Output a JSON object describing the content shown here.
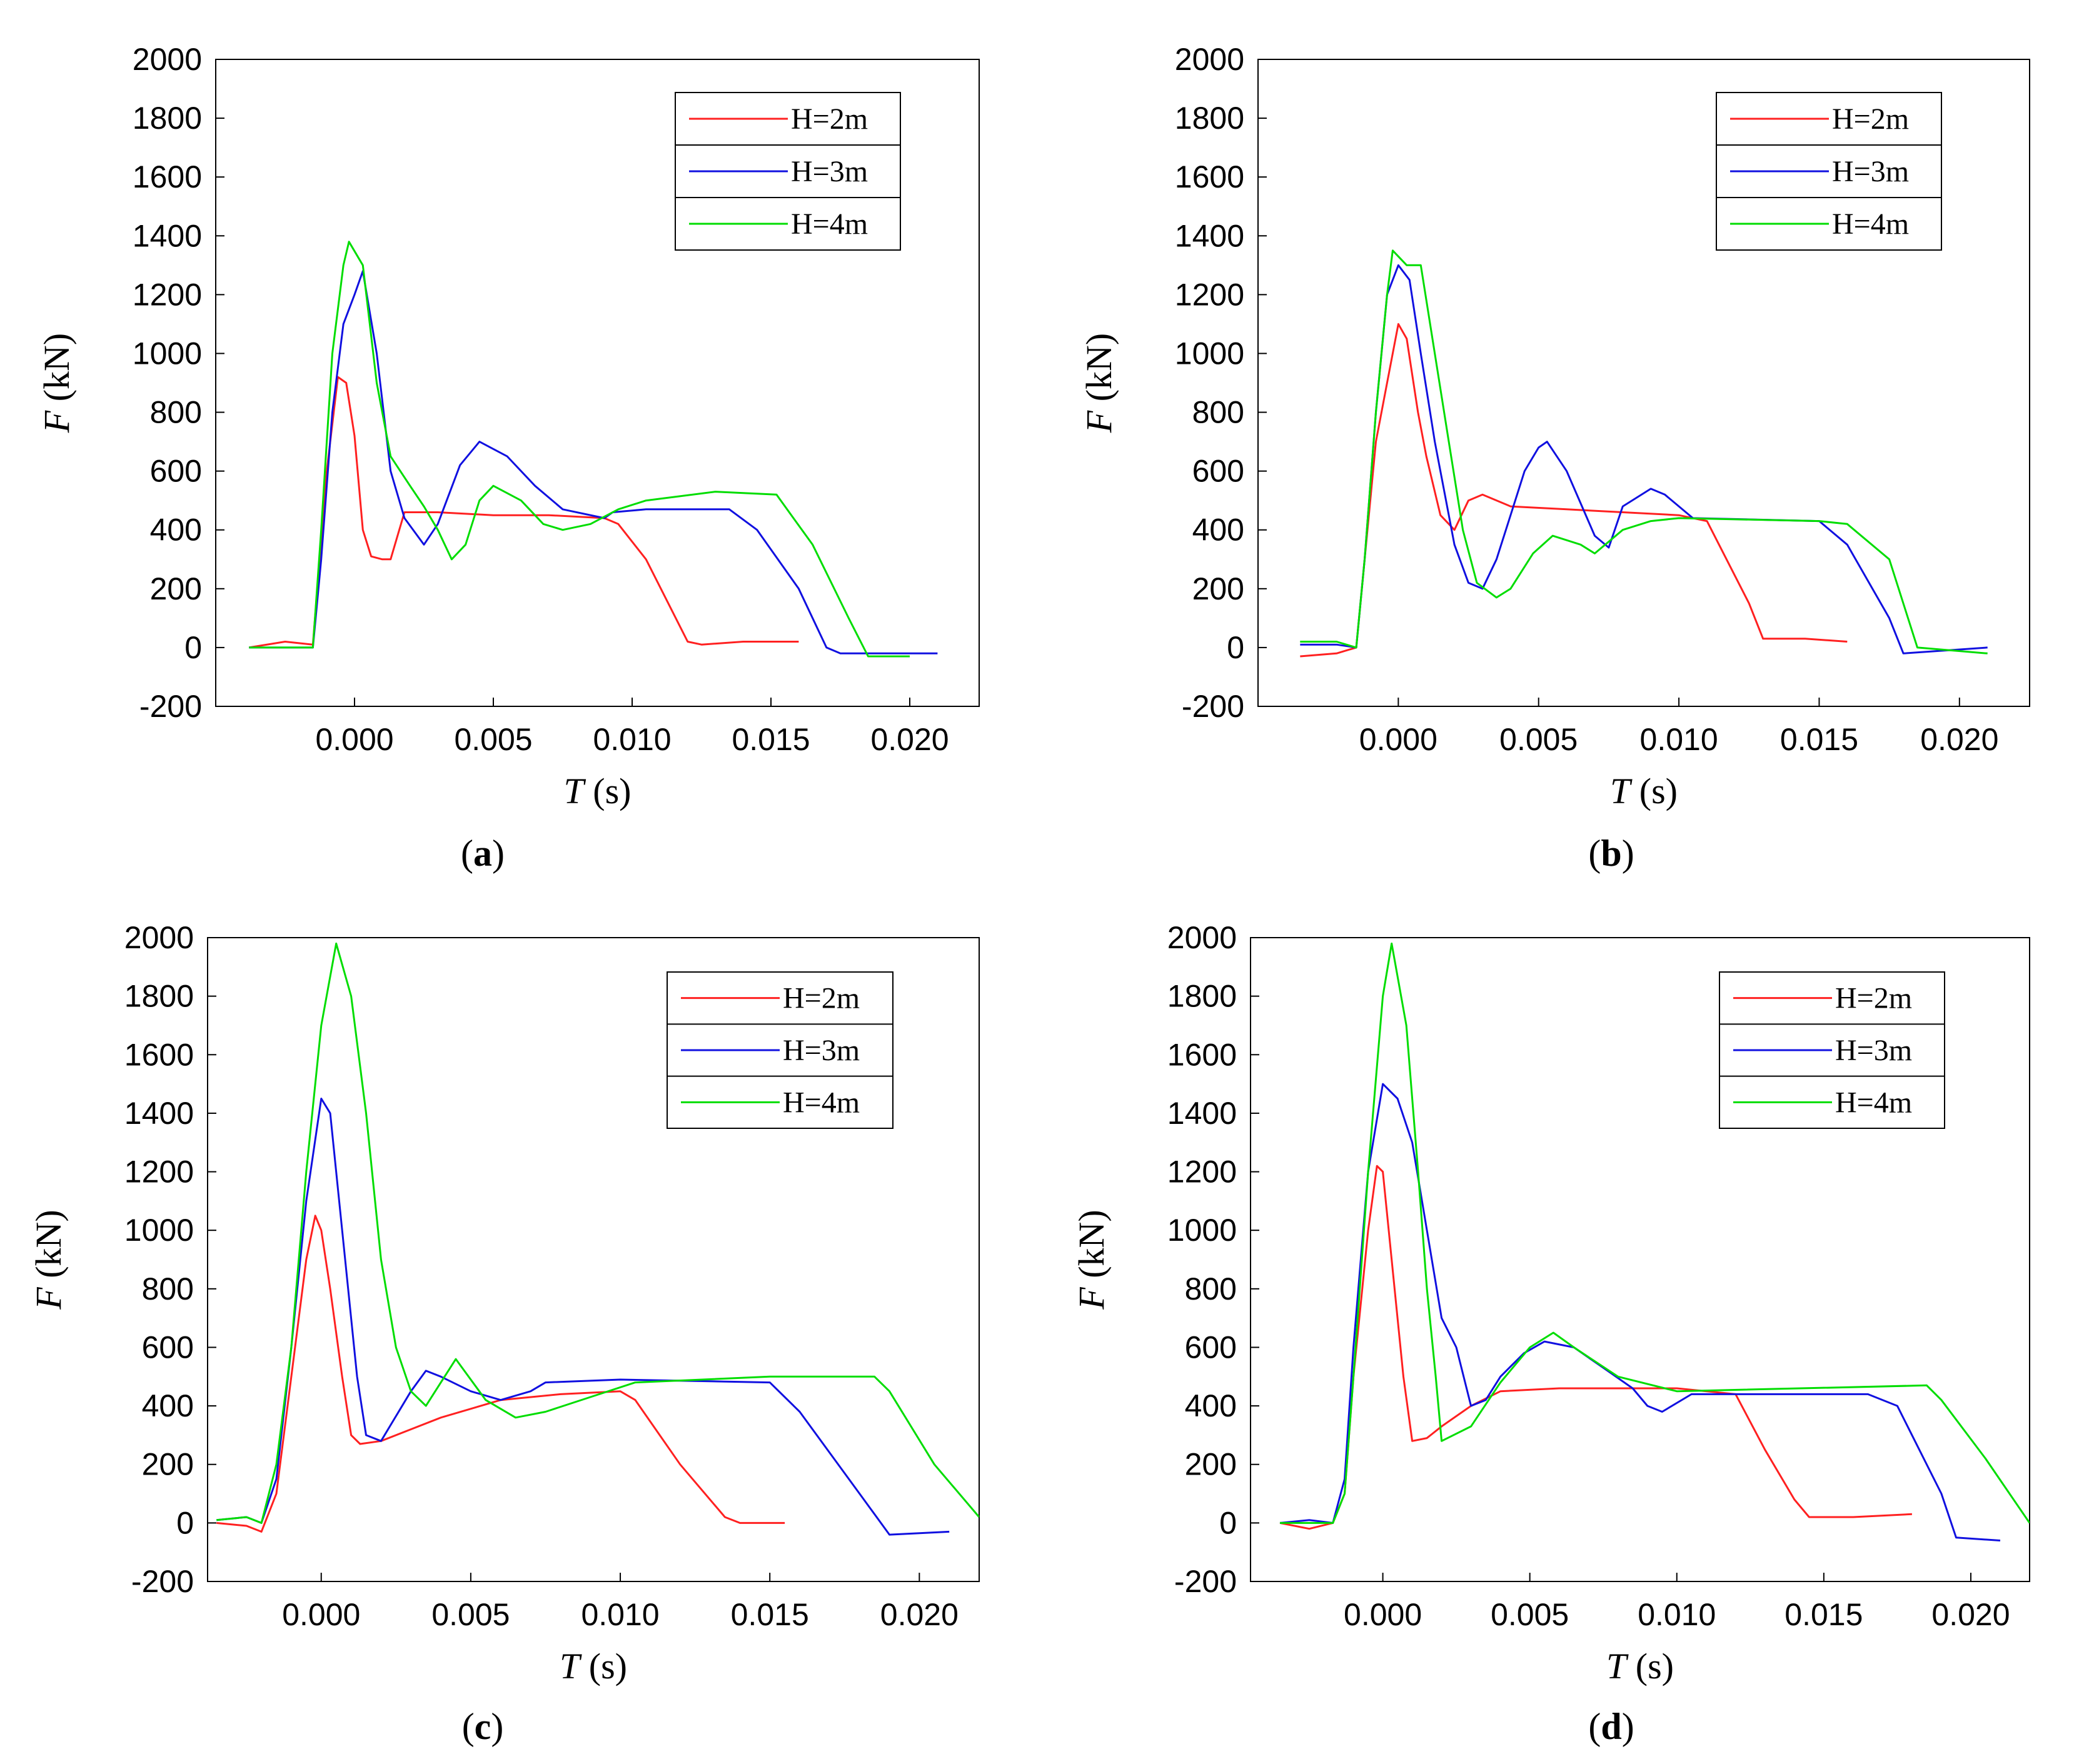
{
  "chart_data": [
    {
      "type": "line",
      "panel_label": "a",
      "xlabel": {
        "var": "T",
        "unit": " (s)"
      },
      "ylabel": {
        "var": "F",
        "unit": " (kN)"
      },
      "xlim": [
        -0.005,
        0.0225
      ],
      "ylim": [
        -200,
        2000
      ],
      "xticks": [
        0.0,
        0.005,
        0.01,
        0.015,
        0.02
      ],
      "xtick_labels": [
        "0.000",
        "0.005",
        "0.010",
        "0.015",
        "0.020"
      ],
      "yticks": [
        -200,
        0,
        200,
        400,
        600,
        800,
        1000,
        1200,
        1400,
        1600,
        1800,
        2000
      ],
      "ytick_labels": [
        "-200",
        "0",
        "200",
        "400",
        "600",
        "800",
        "1000",
        "1200",
        "1400",
        "1600",
        "1800",
        "2000"
      ],
      "legend": [
        "H=2m",
        "H=3m",
        "H=4m"
      ],
      "legend_position": "top-right",
      "series": [
        {
          "name": "H=2m",
          "color": "#ff2020",
          "x": [
            -0.0038,
            -0.0025,
            -0.0015,
            -0.001,
            -0.0006,
            -0.0003,
            0.0,
            0.0003,
            0.0006,
            0.001,
            0.0013,
            0.0018,
            0.003,
            0.005,
            0.007,
            0.009,
            0.0095,
            0.0105,
            0.012,
            0.0125,
            0.014,
            0.016
          ],
          "y": [
            0,
            20,
            10,
            600,
            920,
            900,
            720,
            400,
            310,
            300,
            300,
            460,
            460,
            450,
            450,
            440,
            420,
            300,
            20,
            10,
            20,
            20
          ]
        },
        {
          "name": "H=3m",
          "color": "#1010e0",
          "x": [
            -0.0038,
            -0.0025,
            -0.0015,
            -0.0012,
            -0.0008,
            -0.0004,
            0.0,
            0.0003,
            0.0008,
            0.0013,
            0.0018,
            0.0025,
            0.003,
            0.0038,
            0.0045,
            0.0055,
            0.0065,
            0.0075,
            0.009,
            0.0093,
            0.0105,
            0.0135,
            0.0145,
            0.016,
            0.017,
            0.0175,
            0.019,
            0.021
          ],
          "y": [
            0,
            0,
            0,
            300,
            800,
            1100,
            1200,
            1280,
            1000,
            600,
            440,
            350,
            420,
            620,
            700,
            650,
            550,
            470,
            440,
            460,
            470,
            470,
            400,
            200,
            0,
            -20,
            -20,
            -20
          ]
        },
        {
          "name": "H=4m",
          "color": "#00dd00",
          "x": [
            -0.0038,
            -0.0025,
            -0.0015,
            -0.0012,
            -0.0008,
            -0.0004,
            -0.0002,
            0.0003,
            0.0008,
            0.0013,
            0.002,
            0.0025,
            0.003,
            0.0035,
            0.004,
            0.0045,
            0.005,
            0.006,
            0.0068,
            0.0075,
            0.0085,
            0.0095,
            0.0105,
            0.013,
            0.0152,
            0.0165,
            0.0178,
            0.0185,
            0.02
          ],
          "y": [
            0,
            0,
            0,
            400,
            1000,
            1300,
            1380,
            1300,
            900,
            650,
            550,
            480,
            400,
            300,
            350,
            500,
            550,
            500,
            420,
            400,
            420,
            470,
            500,
            530,
            520,
            350,
            100,
            -30,
            -30
          ]
        }
      ]
    },
    {
      "type": "line",
      "panel_label": "b",
      "xlabel": {
        "var": "T",
        "unit": " (s)"
      },
      "ylabel": {
        "var": "F",
        "unit": " (kN)"
      },
      "xlim": [
        -0.005,
        0.0225
      ],
      "ylim": [
        -200,
        2000
      ],
      "xticks": [
        0.0,
        0.005,
        0.01,
        0.015,
        0.02
      ],
      "xtick_labels": [
        "0.000",
        "0.005",
        "0.010",
        "0.015",
        "0.020"
      ],
      "yticks": [
        -200,
        0,
        200,
        400,
        600,
        800,
        1000,
        1200,
        1400,
        1600,
        1800,
        2000
      ],
      "ytick_labels": [
        "-200",
        "0",
        "200",
        "400",
        "600",
        "800",
        "1000",
        "1200",
        "1400",
        "1600",
        "1800",
        "2000"
      ],
      "legend": [
        "H=2m",
        "H=3m",
        "H=4m"
      ],
      "legend_position": "top-right",
      "series": [
        {
          "name": "H=2m",
          "color": "#ff2020",
          "x": [
            -0.0035,
            -0.0022,
            -0.0015,
            -0.0012,
            -0.0008,
            -0.0004,
            0.0,
            0.0003,
            0.0007,
            0.001,
            0.0015,
            0.002,
            0.0025,
            0.003,
            0.004,
            0.006,
            0.008,
            0.01,
            0.011,
            0.0125,
            0.013,
            0.0145,
            0.016
          ],
          "y": [
            -30,
            -20,
            0,
            300,
            700,
            900,
            1100,
            1050,
            800,
            650,
            450,
            400,
            500,
            520,
            480,
            470,
            460,
            450,
            430,
            150,
            30,
            30,
            20
          ]
        },
        {
          "name": "H=3m",
          "color": "#1010e0",
          "x": [
            -0.0035,
            -0.0022,
            -0.0015,
            -0.0012,
            -0.0008,
            -0.0004,
            0.0,
            0.0004,
            0.0008,
            0.0013,
            0.002,
            0.0025,
            0.003,
            0.0035,
            0.004,
            0.0045,
            0.005,
            0.0053,
            0.006,
            0.007,
            0.0075,
            0.008,
            0.009,
            0.0095,
            0.0105,
            0.015,
            0.016,
            0.0175,
            0.018,
            0.021
          ],
          "y": [
            10,
            10,
            0,
            300,
            800,
            1200,
            1300,
            1250,
            1000,
            700,
            350,
            220,
            200,
            300,
            450,
            600,
            680,
            700,
            600,
            380,
            340,
            480,
            540,
            520,
            440,
            430,
            350,
            100,
            -20,
            0
          ]
        },
        {
          "name": "H=4m",
          "color": "#00dd00",
          "x": [
            -0.0035,
            -0.0022,
            -0.0015,
            -0.0012,
            -0.0008,
            -0.0004,
            -0.0002,
            0.0003,
            0.0008,
            0.0013,
            0.0018,
            0.0023,
            0.0028,
            0.0035,
            0.004,
            0.0048,
            0.0055,
            0.0065,
            0.007,
            0.008,
            0.009,
            0.01,
            0.015,
            0.016,
            0.0175,
            0.0185,
            0.021
          ],
          "y": [
            20,
            20,
            0,
            300,
            800,
            1200,
            1350,
            1300,
            1300,
            1000,
            700,
            400,
            220,
            170,
            200,
            320,
            380,
            350,
            320,
            400,
            430,
            440,
            430,
            420,
            300,
            0,
            -20
          ]
        }
      ]
    },
    {
      "type": "line",
      "panel_label": "c",
      "xlabel": {
        "var": "T",
        "unit": " (s)"
      },
      "ylabel": {
        "var": "F",
        "unit": " (kN)"
      },
      "xlim": [
        -0.0038,
        0.022
      ],
      "ylim": [
        -200,
        2000
      ],
      "xticks": [
        0.0,
        0.005,
        0.01,
        0.015,
        0.02
      ],
      "xtick_labels": [
        "0.000",
        "0.005",
        "0.010",
        "0.015",
        "0.020"
      ],
      "yticks": [
        -200,
        0,
        200,
        400,
        600,
        800,
        1000,
        1200,
        1400,
        1600,
        1800,
        2000
      ],
      "ytick_labels": [
        "-200",
        "0",
        "200",
        "400",
        "600",
        "800",
        "1000",
        "1200",
        "1400",
        "1600",
        "1800",
        "2000"
      ],
      "legend": [
        "H=2m",
        "H=3m",
        "H=4m"
      ],
      "legend_position": "top-right",
      "series": [
        {
          "name": "H=2m",
          "color": "#ff2020",
          "x": [
            -0.0035,
            -0.0025,
            -0.002,
            -0.0015,
            -0.001,
            -0.0005,
            -0.0002,
            0.0,
            0.0003,
            0.0007,
            0.001,
            0.0013,
            0.002,
            0.004,
            0.006,
            0.008,
            0.01,
            0.0105,
            0.012,
            0.0135,
            0.014,
            0.0155
          ],
          "y": [
            0,
            -10,
            -30,
            100,
            500,
            900,
            1050,
            1000,
            800,
            500,
            300,
            270,
            280,
            360,
            420,
            440,
            450,
            420,
            200,
            20,
            0,
            0
          ]
        },
        {
          "name": "H=3m",
          "color": "#1010e0",
          "x": [
            -0.0035,
            -0.0025,
            -0.002,
            -0.0015,
            -0.001,
            -0.0005,
            0.0,
            0.0003,
            0.0008,
            0.0012,
            0.0015,
            0.002,
            0.003,
            0.0035,
            0.004,
            0.005,
            0.006,
            0.007,
            0.0075,
            0.01,
            0.015,
            0.016,
            0.018,
            0.019,
            0.021
          ],
          "y": [
            10,
            20,
            0,
            150,
            600,
            1100,
            1450,
            1400,
            900,
            500,
            300,
            280,
            450,
            520,
            500,
            450,
            420,
            450,
            480,
            490,
            480,
            380,
            100,
            -40,
            -30
          ]
        },
        {
          "name": "H=4m",
          "color": "#00dd00",
          "x": [
            -0.0035,
            -0.0025,
            -0.002,
            -0.0015,
            -0.001,
            -0.0005,
            0.0,
            0.0005,
            0.001,
            0.0015,
            0.002,
            0.0025,
            0.003,
            0.0035,
            0.004,
            0.0045,
            0.0055,
            0.0065,
            0.0075,
            0.009,
            0.0105,
            0.015,
            0.0185,
            0.019,
            0.0205,
            0.022
          ],
          "y": [
            10,
            20,
            0,
            200,
            600,
            1200,
            1700,
            1980,
            1800,
            1400,
            900,
            600,
            450,
            400,
            480,
            560,
            420,
            360,
            380,
            430,
            480,
            500,
            500,
            450,
            200,
            20
          ]
        }
      ]
    },
    {
      "type": "line",
      "panel_label": "d",
      "xlabel": {
        "var": "T",
        "unit": " (s)"
      },
      "ylabel": {
        "var": "F",
        "unit": " (kN)"
      },
      "xlim": [
        -0.0045,
        0.022
      ],
      "ylim": [
        -200,
        2000
      ],
      "xticks": [
        0.0,
        0.005,
        0.01,
        0.015,
        0.02
      ],
      "xtick_labels": [
        "0.000",
        "0.005",
        "0.010",
        "0.015",
        "0.020"
      ],
      "yticks": [
        -200,
        0,
        200,
        400,
        600,
        800,
        1000,
        1200,
        1400,
        1600,
        1800,
        2000
      ],
      "ytick_labels": [
        "-200",
        "0",
        "200",
        "400",
        "600",
        "800",
        "1000",
        "1200",
        "1400",
        "1600",
        "1800",
        "2000"
      ],
      "legend": [
        "H=2m",
        "H=3m",
        "H=4m"
      ],
      "legend_position": "top-right",
      "series": [
        {
          "name": "H=2m",
          "color": "#ff2020",
          "x": [
            -0.0035,
            -0.0025,
            -0.0017,
            -0.0013,
            -0.001,
            -0.0005,
            -0.0002,
            0.0,
            0.0003,
            0.0007,
            0.001,
            0.0015,
            0.002,
            0.003,
            0.004,
            0.006,
            0.008,
            0.01,
            0.012,
            0.013,
            0.014,
            0.0145,
            0.016,
            0.018
          ],
          "y": [
            0,
            -20,
            0,
            100,
            500,
            1000,
            1220,
            1200,
            900,
            500,
            280,
            290,
            330,
            400,
            450,
            460,
            460,
            460,
            440,
            250,
            80,
            20,
            20,
            30
          ]
        },
        {
          "name": "H=3m",
          "color": "#1010e0",
          "x": [
            -0.0035,
            -0.0025,
            -0.0017,
            -0.0013,
            -0.001,
            -0.0005,
            0.0,
            0.0005,
            0.001,
            0.0015,
            0.002,
            0.0025,
            0.003,
            0.0035,
            0.004,
            0.0048,
            0.0055,
            0.0065,
            0.0075,
            0.0085,
            0.009,
            0.0095,
            0.0105,
            0.0165,
            0.0175,
            0.018,
            0.019,
            0.0195,
            0.021
          ],
          "y": [
            0,
            10,
            0,
            150,
            600,
            1200,
            1500,
            1450,
            1300,
            1000,
            700,
            600,
            400,
            420,
            500,
            580,
            620,
            600,
            530,
            460,
            400,
            380,
            440,
            440,
            400,
            300,
            100,
            -50,
            -60
          ]
        },
        {
          "name": "H=4m",
          "color": "#00dd00",
          "x": [
            -0.0035,
            -0.0025,
            -0.0017,
            -0.0013,
            -0.001,
            -0.0005,
            0.0,
            0.0003,
            0.0008,
            0.0012,
            0.0015,
            0.0018,
            0.002,
            0.003,
            0.004,
            0.005,
            0.0058,
            0.0065,
            0.008,
            0.01,
            0.0185,
            0.019,
            0.0205,
            0.022
          ],
          "y": [
            0,
            0,
            0,
            100,
            500,
            1200,
            1800,
            1980,
            1700,
            1200,
            800,
            500,
            280,
            330,
            480,
            600,
            650,
            600,
            500,
            450,
            470,
            420,
            220,
            0
          ]
        }
      ]
    }
  ]
}
